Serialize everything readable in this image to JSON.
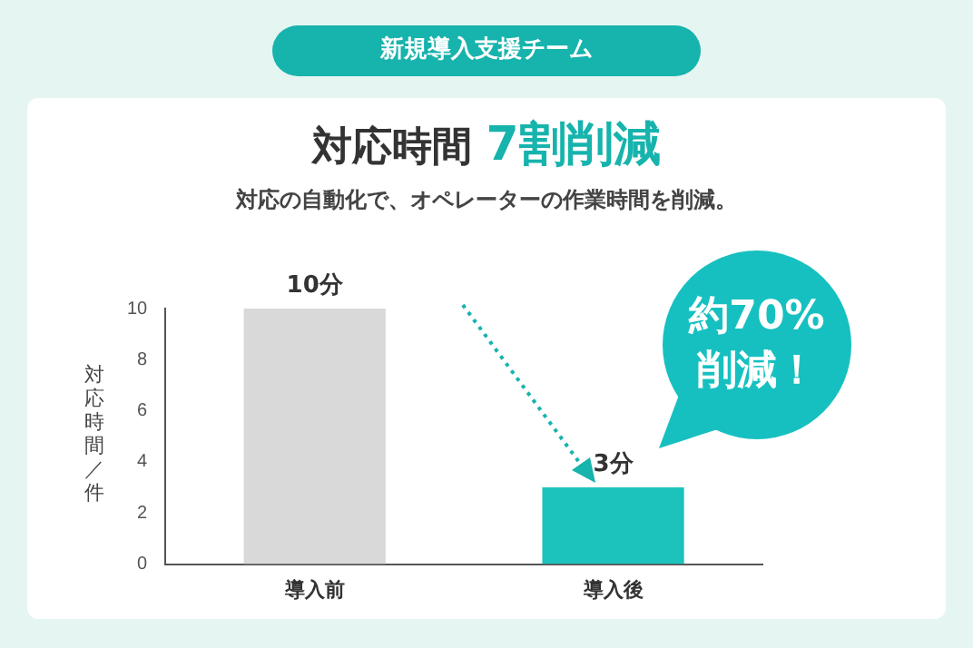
{
  "chart_data": {
    "type": "bar",
    "title": "対応時間 7割削減",
    "subtitle": "対応の自動化で、オペレーターの作業時間を削減。",
    "ylabel": "対応時間／件",
    "categories": [
      "導入前",
      "導入後"
    ],
    "values": [
      10,
      3
    ],
    "value_labels": [
      "10分",
      "3分"
    ],
    "colors": [
      "#d9d9d9",
      "#1cc3bd"
    ],
    "ylim": [
      0,
      10
    ],
    "yticks": [
      0,
      2,
      4,
      6,
      8,
      10
    ],
    "grid": false,
    "legend": false,
    "annotations": [
      "新規導入支援チーム",
      "約70%削減！"
    ]
  }
}
